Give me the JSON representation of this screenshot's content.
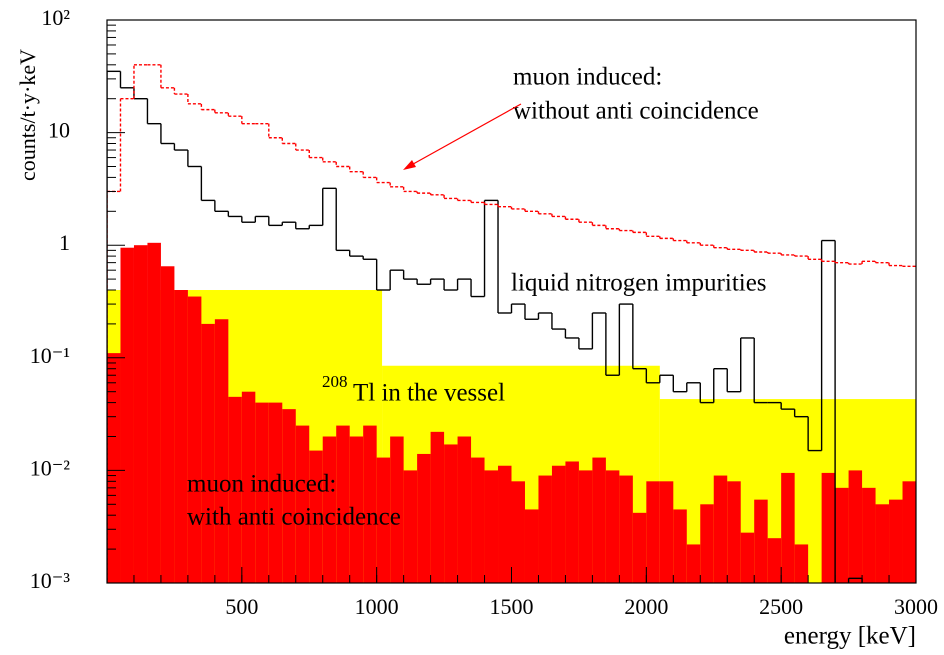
{
  "chart_data": {
    "type": "histogram",
    "ylabel": "counts/t·y·keV",
    "xlabel": "energy [keV]",
    "xlim": [
      0,
      3000
    ],
    "xticks": [
      500,
      1000,
      1500,
      2000,
      2500,
      3000
    ],
    "ylim": [
      0.001,
      100
    ],
    "ylog": true,
    "yticks": [
      {
        "value": 100,
        "label": "10²"
      },
      {
        "value": 10,
        "label": "10"
      },
      {
        "value": 1,
        "label": "1"
      },
      {
        "value": 0.1,
        "label": "10⁻¹"
      },
      {
        "value": 0.01,
        "label": "10⁻²"
      },
      {
        "value": 0.001,
        "label": "10⁻³"
      }
    ],
    "annotations": [
      "muon induced:",
      "without anti coincidence",
      "liquid nitrogen impurities",
      "208",
      "Tl in the vessel",
      "muon induced:",
      "with anti coincidence"
    ],
    "arrow_color": "#ff0000",
    "series": [
      {
        "style": "fill",
        "color": "#ffff00",
        "bins": [
          0,
          1020,
          2050,
          3000
        ],
        "values": [
          0.4,
          0.085,
          0.043
        ]
      },
      {
        "style": "fill",
        "color": "#ff0000",
        "bins": [
          0,
          50,
          100,
          150,
          200,
          250,
          300,
          350,
          400,
          450,
          500,
          550,
          600,
          650,
          700,
          750,
          800,
          850,
          900,
          950,
          1000,
          1050,
          1100,
          1150,
          1200,
          1250,
          1300,
          1350,
          1400,
          1450,
          1500,
          1550,
          1600,
          1650,
          1700,
          1750,
          1800,
          1850,
          1900,
          1950,
          2000,
          2050,
          2100,
          2150,
          2200,
          2250,
          2300,
          2350,
          2400,
          2450,
          2500,
          2550,
          2600,
          2650,
          2700,
          2750,
          2800,
          2850,
          2900,
          2950,
          3000
        ],
        "values": [
          0.11,
          0.95,
          1.0,
          1.05,
          0.65,
          0.4,
          0.35,
          0.2,
          0.22,
          0.045,
          0.05,
          0.04,
          0.04,
          0.035,
          0.025,
          0.015,
          0.02,
          0.025,
          0.02,
          0.025,
          0.013,
          0.02,
          0.01,
          0.014,
          0.022,
          0.017,
          0.02,
          0.013,
          0.01,
          0.011,
          0.008,
          0.0045,
          0.009,
          0.011,
          0.012,
          0.01,
          0.013,
          0.01,
          0.009,
          0.0042,
          0.008,
          0.008,
          0.0045,
          0.0022,
          0.005,
          0.009,
          0.008,
          0.0028,
          0.0055,
          0.0025,
          0.0095,
          0.0022,
          0.0009,
          0.0095,
          0.007,
          0.01,
          0.007,
          0.005,
          0.0055,
          0.008
        ]
      },
      {
        "style": "step",
        "color": "#000000",
        "bins": [
          0,
          50,
          100,
          150,
          200,
          250,
          300,
          350,
          400,
          450,
          500,
          550,
          600,
          650,
          700,
          750,
          800,
          850,
          900,
          950,
          1000,
          1050,
          1100,
          1150,
          1200,
          1250,
          1300,
          1350,
          1400,
          1450,
          1500,
          1550,
          1600,
          1650,
          1700,
          1750,
          1800,
          1850,
          1900,
          1950,
          2000,
          2050,
          2100,
          2150,
          2200,
          2250,
          2300,
          2350,
          2400,
          2450,
          2500,
          2550,
          2600,
          2650,
          2700,
          2750,
          2800,
          2850,
          2900,
          2950,
          3000
        ],
        "values": [
          35,
          25,
          20,
          12,
          8,
          7,
          5,
          2.5,
          2,
          1.8,
          1.6,
          1.8,
          1.5,
          1.6,
          1.4,
          1.5,
          3.2,
          0.9,
          0.8,
          0.75,
          0.4,
          0.6,
          0.5,
          0.45,
          0.5,
          0.4,
          0.5,
          0.35,
          2.5,
          0.25,
          0.3,
          0.22,
          0.25,
          0.18,
          0.15,
          0.12,
          0.25,
          0.07,
          0.3,
          0.08,
          0.06,
          0.07,
          0.05,
          0.06,
          0.04,
          0.08,
          0.05,
          0.15,
          0.04,
          0.04,
          0.035,
          0.03,
          0.015,
          1.1,
          0.0009,
          0.0011,
          0.0009,
          0.0009,
          0.0009,
          0.0009
        ]
      },
      {
        "style": "dotted",
        "color": "#ff0000",
        "bins": [
          0,
          50,
          100,
          150,
          200,
          250,
          300,
          350,
          400,
          450,
          500,
          550,
          600,
          650,
          700,
          750,
          800,
          850,
          900,
          950,
          1000,
          1050,
          1100,
          1150,
          1200,
          1250,
          1300,
          1350,
          1400,
          1450,
          1500,
          1550,
          1600,
          1650,
          1700,
          1750,
          1800,
          1850,
          1900,
          1950,
          2000,
          2050,
          2100,
          2150,
          2200,
          2250,
          2300,
          2350,
          2400,
          2450,
          2500,
          2550,
          2600,
          2650,
          2700,
          2750,
          2800,
          2850,
          2900,
          2950,
          3000
        ],
        "values": [
          3,
          20,
          40,
          40,
          25,
          22,
          18,
          16,
          15,
          14,
          12,
          12,
          9,
          8,
          7,
          6,
          5.5,
          5,
          4.5,
          4,
          3.6,
          3.3,
          3,
          2.9,
          2.8,
          2.6,
          2.5,
          2.4,
          2.3,
          2.2,
          2.1,
          2,
          1.9,
          1.8,
          1.7,
          1.6,
          1.5,
          1.4,
          1.35,
          1.3,
          1.2,
          1.15,
          1.1,
          1.05,
          1,
          0.95,
          0.92,
          0.9,
          0.87,
          0.85,
          0.82,
          0.8,
          0.75,
          0.72,
          0.7,
          0.68,
          0.72,
          0.7,
          0.66,
          0.65
        ]
      }
    ]
  }
}
